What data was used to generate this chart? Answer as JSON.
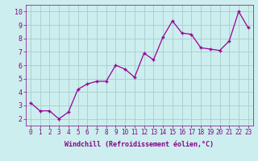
{
  "x_vals": [
    0,
    1,
    2,
    3,
    4,
    5,
    6,
    7,
    8,
    9,
    10,
    11,
    12,
    13,
    14,
    15,
    16,
    17,
    18,
    19,
    20,
    21,
    22,
    23
  ],
  "y_vals": [
    3.2,
    2.6,
    2.6,
    2.0,
    2.5,
    4.2,
    4.6,
    4.8,
    4.8,
    6.0,
    5.7,
    5.1,
    6.9,
    6.4,
    8.1,
    9.3,
    8.4,
    8.3,
    7.3,
    7.2,
    7.1,
    7.8,
    10.0,
    8.8
  ],
  "line_color": "#990099",
  "marker_color": "#990099",
  "bg_color": "#cceeee",
  "grid_color": "#aacccc",
  "xlabel": "Windchill (Refroidissement éolien,°C)",
  "ylim": [
    1.5,
    10.5
  ],
  "xlim": [
    -0.5,
    23.5
  ],
  "yticks": [
    2,
    3,
    4,
    5,
    6,
    7,
    8,
    9,
    10
  ],
  "xticks": [
    0,
    1,
    2,
    3,
    4,
    5,
    6,
    7,
    8,
    9,
    10,
    11,
    12,
    13,
    14,
    15,
    16,
    17,
    18,
    19,
    20,
    21,
    22,
    23
  ],
  "tick_color": "#880088",
  "xlabel_color": "#880088",
  "tick_fontsize": 5.5,
  "xlabel_fontsize": 6.0,
  "linewidth": 0.9,
  "markersize": 3.0
}
